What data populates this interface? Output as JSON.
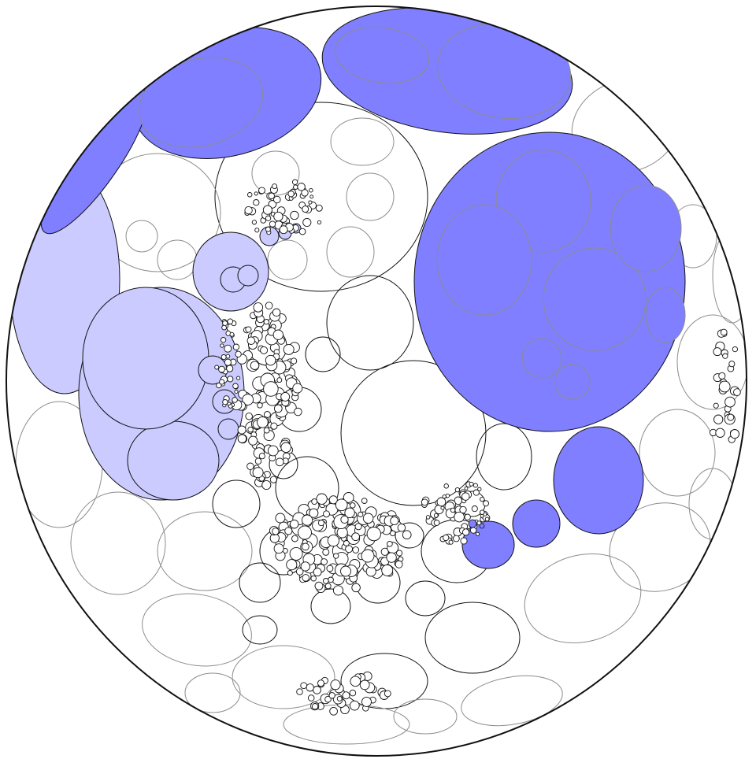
{
  "colors": {
    "background": "#ffffff",
    "outline": "#111111",
    "thin_outline": "#8c8c8c",
    "strong_fill": "#7f7fff",
    "pale_fill": "#cbcbff"
  }
}
